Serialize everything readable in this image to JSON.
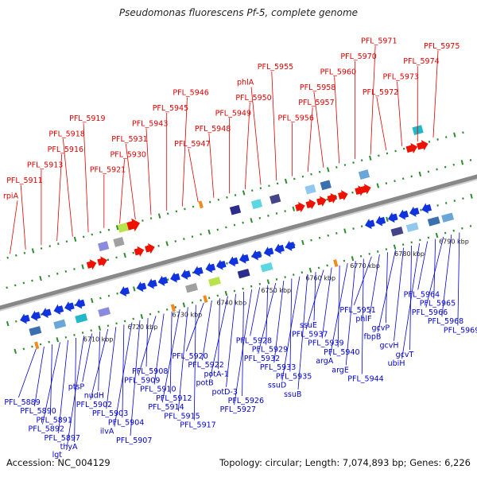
{
  "title": "Pseudomonas fluorescens Pf-5, complete genome",
  "accession": "Accession: NC_004129",
  "summary": "Topology: circular; Length: 7,074,893 bp; Genes: 6,226",
  "colors": {
    "forward_label": "#dd0000",
    "reverse_label": "#0000cc",
    "forward_gene": "#ee1100",
    "reverse_gene": "#1133dd",
    "backbone": "#888888",
    "track_dots": "#2e8b2e"
  },
  "ruler_ticks": [
    "6710 kbp",
    "6720 kbp",
    "6730 kbp",
    "6740 kbp",
    "6750 kbp",
    "6760 kbp",
    "6770 kbp",
    "6780 kbp",
    "6790 kbp"
  ],
  "top_labels": [
    "rpiA",
    "PFL_5911",
    "PFL_5913",
    "PFL_5916",
    "PFL_5918",
    "PFL_5919",
    "PFL_5921",
    "PFL_5930",
    "PFL_5931",
    "PFL_5943",
    "PFL_5945",
    "PFL_5946",
    "PFL_5947",
    "PFL_5948",
    "PFL_5949",
    "PFL_5950",
    "phlA",
    "PFL_5955",
    "PFL_5956",
    "PFL_5957",
    "PFL_5958",
    "PFL_5960",
    "PFL_5970",
    "PFL_5971",
    "PFL_5972",
    "PFL_5973",
    "PFL_5974",
    "PFL_5975"
  ],
  "bottom_labels": [
    "PFL_5889",
    "PFL_5890",
    "PFL_5891",
    "PFL_5892",
    "PFL_5897",
    "thyA",
    "lgt",
    "ptsP",
    "nudH",
    "PFL_5902",
    "PFL_5903",
    "PFL_5904",
    "ilvA",
    "PFL_5907",
    "PFL_5908",
    "PFL_5909",
    "PFL_5910",
    "PFL_5912",
    "PFL_5914",
    "PFL_5915",
    "PFL_5917",
    "PFL_5920",
    "PFL_5922",
    "potA-1",
    "potB",
    "potD-3",
    "PFL_5926",
    "PFL_5927",
    "PFL_5928",
    "PFL_5929",
    "PFL_5932",
    "PFL_5933",
    "PFL_5935",
    "ssuD",
    "ssuB",
    "ssuE",
    "PFL_5937",
    "PFL_5939",
    "PFL_5940",
    "argA",
    "argE",
    "PFL_5944",
    "PFL_5951",
    "phlF",
    "gcvP",
    "fbpB",
    "gcvH",
    "gcvT",
    "ubiH",
    "PFL_5964",
    "PFL_5965",
    "PFL_5966",
    "PFL_5968",
    "PFL_5969"
  ]
}
